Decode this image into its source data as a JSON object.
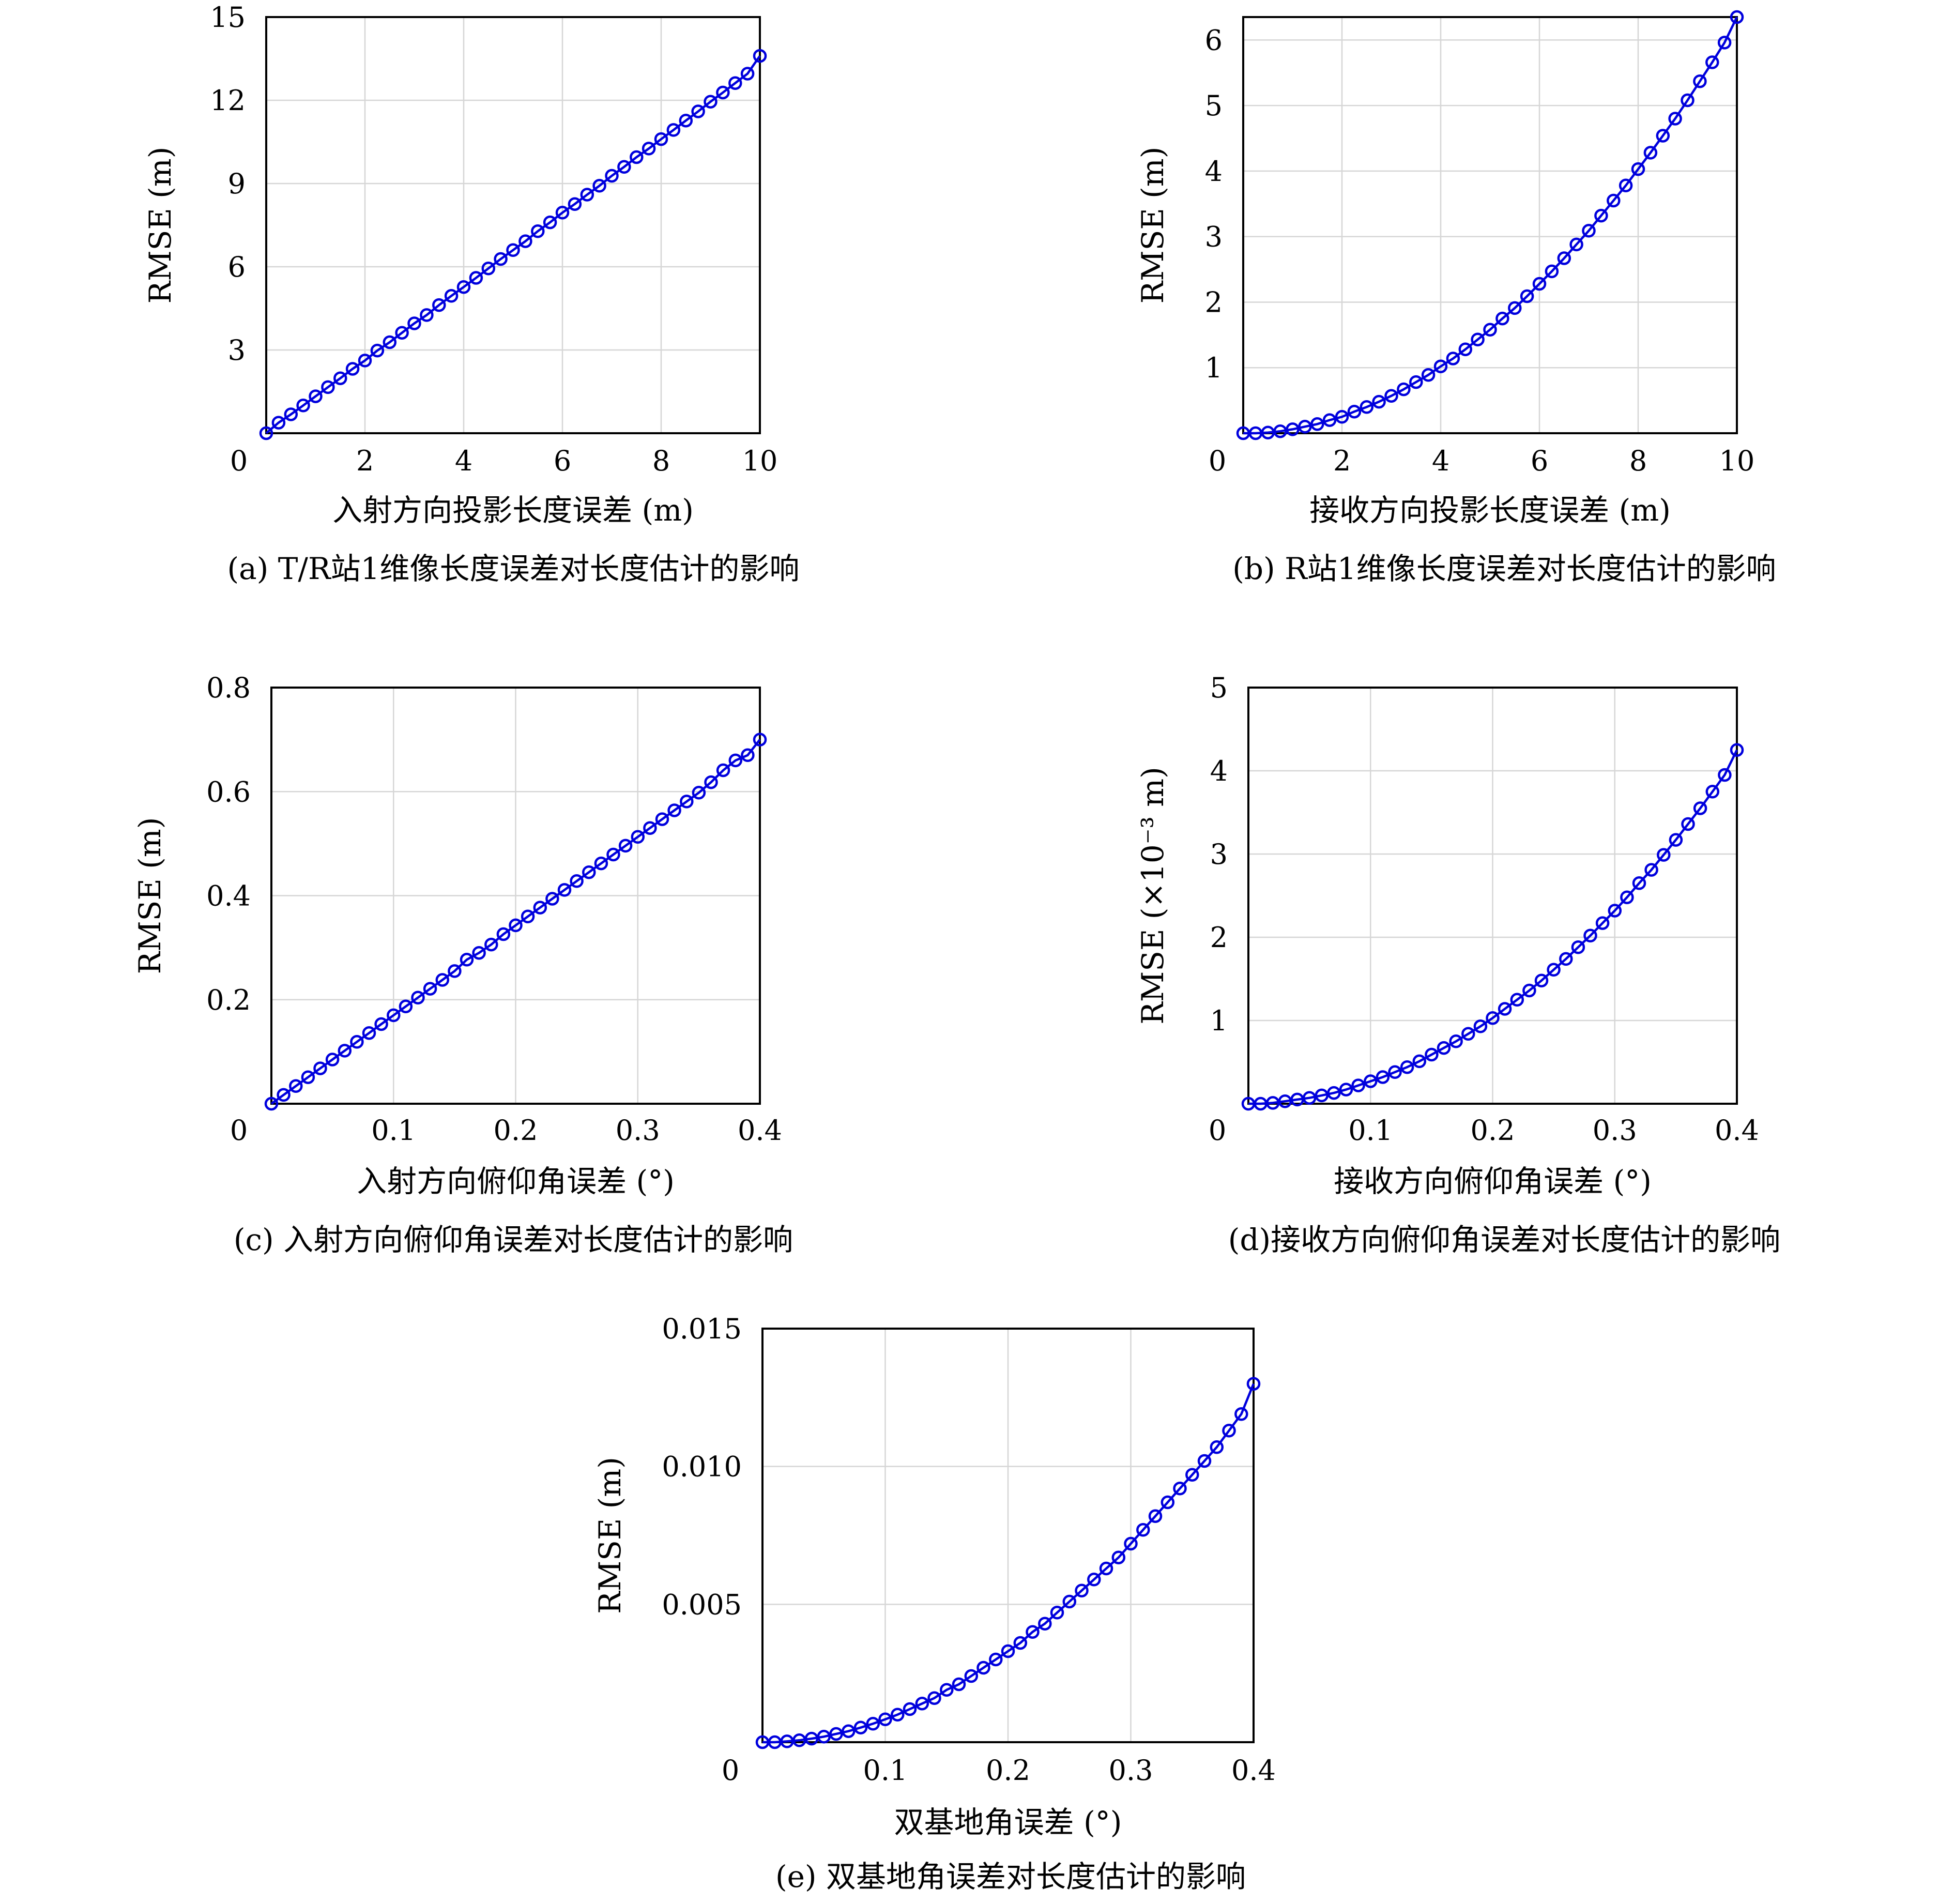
{
  "chart_data": [
    {
      "id": "a",
      "type": "line",
      "xlabel": "入射方向投影长度误差 (m)",
      "ylabel": "RMSE (m)",
      "caption": "(a) T/R站1维像长度误差对长度估计的影响",
      "xlim": [
        0,
        10
      ],
      "ylim": [
        0,
        15
      ],
      "xticks": [
        0,
        2,
        4,
        6,
        8,
        10
      ],
      "xtick_labels": [
        "0",
        "2",
        "4",
        "6",
        "8",
        "10"
      ],
      "yticks": [
        3,
        6,
        9,
        12,
        15
      ],
      "ytick_labels": [
        "3",
        "6",
        "9",
        "12",
        "15"
      ],
      "grid": true,
      "series": [
        {
          "color": "#0000dd",
          "marker": "circle",
          "x": [
            0.0,
            0.25,
            0.5,
            0.75,
            1.0,
            1.25,
            1.5,
            1.75,
            2.0,
            2.25,
            2.5,
            2.75,
            3.0,
            3.25,
            3.5,
            3.75,
            4.0,
            4.25,
            4.5,
            4.75,
            5.0,
            5.25,
            5.5,
            5.75,
            6.0,
            6.25,
            6.5,
            6.75,
            7.0,
            7.25,
            7.5,
            7.75,
            8.0,
            8.25,
            8.5,
            8.75,
            9.0,
            9.25,
            9.5,
            9.75,
            10.0
          ],
          "y": [
            0.0,
            0.38,
            0.68,
            1.0,
            1.33,
            1.66,
            1.98,
            2.32,
            2.62,
            2.98,
            3.28,
            3.62,
            3.96,
            4.26,
            4.62,
            4.95,
            5.27,
            5.6,
            5.94,
            6.28,
            6.6,
            6.92,
            7.28,
            7.6,
            7.95,
            8.26,
            8.6,
            8.92,
            9.28,
            9.6,
            9.95,
            10.26,
            10.6,
            10.93,
            11.27,
            11.6,
            11.95,
            12.28,
            12.62,
            12.96,
            13.6
          ]
        }
      ]
    },
    {
      "id": "b",
      "type": "line",
      "xlabel": "接收方向投影长度误差 (m)",
      "ylabel": "RMSE (m)",
      "caption": "(b) R站1维像长度误差对长度估计的影响",
      "xlim": [
        0,
        10
      ],
      "ylim": [
        0,
        6.35
      ],
      "xticks": [
        0,
        2,
        4,
        6,
        8,
        10
      ],
      "xtick_labels": [
        "0",
        "2",
        "4",
        "6",
        "8",
        "10"
      ],
      "yticks": [
        1,
        2,
        3,
        4,
        5,
        6
      ],
      "ytick_labels": [
        "1",
        "2",
        "3",
        "4",
        "5",
        "6"
      ],
      "grid": true,
      "series": [
        {
          "color": "#0000dd",
          "marker": "circle",
          "x": [
            0.0,
            0.25,
            0.5,
            0.75,
            1.0,
            1.25,
            1.5,
            1.75,
            2.0,
            2.25,
            2.5,
            2.75,
            3.0,
            3.25,
            3.5,
            3.75,
            4.0,
            4.25,
            4.5,
            4.75,
            5.0,
            5.25,
            5.5,
            5.75,
            6.0,
            6.25,
            6.5,
            6.75,
            7.0,
            7.25,
            7.5,
            7.75,
            8.0,
            8.25,
            8.5,
            8.75,
            9.0,
            9.25,
            9.5,
            9.75,
            10.0
          ],
          "y": [
            0.0,
            0.0,
            0.01,
            0.03,
            0.06,
            0.1,
            0.14,
            0.2,
            0.25,
            0.33,
            0.4,
            0.48,
            0.57,
            0.67,
            0.78,
            0.89,
            1.02,
            1.14,
            1.28,
            1.43,
            1.58,
            1.75,
            1.91,
            2.09,
            2.28,
            2.47,
            2.67,
            2.88,
            3.09,
            3.32,
            3.55,
            3.78,
            4.03,
            4.28,
            4.54,
            4.8,
            5.08,
            5.37,
            5.66,
            5.96,
            6.35
          ]
        }
      ]
    },
    {
      "id": "c",
      "type": "line",
      "xlabel": "入射方向俯仰角误差 (°)",
      "ylabel": "RMSE (m)",
      "caption": "(c) 入射方向俯仰角误差对长度估计的影响",
      "xlim": [
        0,
        0.4
      ],
      "ylim": [
        0,
        0.8
      ],
      "xticks": [
        0,
        0.1,
        0.2,
        0.3,
        0.4
      ],
      "xtick_labels": [
        "0",
        "0.1",
        "0.2",
        "0.3",
        "0.4"
      ],
      "yticks": [
        0.2,
        0.4,
        0.6,
        0.8
      ],
      "ytick_labels": [
        "0.2",
        "0.4",
        "0.6",
        "0.8"
      ],
      "grid": true,
      "series": [
        {
          "color": "#0000dd",
          "marker": "circle",
          "x": [
            0.0,
            0.01,
            0.02,
            0.03,
            0.04,
            0.05,
            0.06,
            0.07,
            0.08,
            0.09,
            0.1,
            0.11,
            0.12,
            0.13,
            0.14,
            0.15,
            0.16,
            0.17,
            0.18,
            0.19,
            0.2,
            0.21,
            0.22,
            0.23,
            0.24,
            0.25,
            0.26,
            0.27,
            0.28,
            0.29,
            0.3,
            0.31,
            0.32,
            0.33,
            0.34,
            0.35,
            0.36,
            0.37,
            0.38,
            0.39,
            0.4
          ],
          "y": [
            0.0,
            0.017,
            0.034,
            0.051,
            0.068,
            0.085,
            0.102,
            0.119,
            0.136,
            0.153,
            0.17,
            0.187,
            0.204,
            0.221,
            0.238,
            0.255,
            0.277,
            0.29,
            0.306,
            0.326,
            0.343,
            0.36,
            0.377,
            0.394,
            0.411,
            0.428,
            0.445,
            0.462,
            0.479,
            0.496,
            0.513,
            0.53,
            0.547,
            0.564,
            0.581,
            0.598,
            0.618,
            0.641,
            0.66,
            0.67,
            0.7
          ]
        }
      ]
    },
    {
      "id": "d",
      "type": "line",
      "xlabel": "接收方向俯仰角误差 (°)",
      "ylabel": "RMSE (×10⁻³ m)",
      "caption": "(d)接收方向俯仰角误差对长度估计的影响",
      "xlim": [
        0,
        0.4
      ],
      "ylim": [
        0,
        5
      ],
      "xticks": [
        0,
        0.1,
        0.2,
        0.3,
        0.4
      ],
      "xtick_labels": [
        "0",
        "0.1",
        "0.2",
        "0.3",
        "0.4"
      ],
      "yticks": [
        1,
        2,
        3,
        4,
        5
      ],
      "ytick_labels": [
        "1",
        "2",
        "3",
        "4",
        "5"
      ],
      "grid": true,
      "series": [
        {
          "color": "#0000dd",
          "marker": "circle",
          "x": [
            0.0,
            0.01,
            0.02,
            0.03,
            0.04,
            0.05,
            0.06,
            0.07,
            0.08,
            0.09,
            0.1,
            0.11,
            0.12,
            0.13,
            0.14,
            0.15,
            0.16,
            0.17,
            0.18,
            0.19,
            0.2,
            0.21,
            0.22,
            0.23,
            0.24,
            0.25,
            0.26,
            0.27,
            0.28,
            0.29,
            0.3,
            0.31,
            0.32,
            0.33,
            0.34,
            0.35,
            0.36,
            0.37,
            0.38,
            0.39,
            0.4
          ],
          "y": [
            0.0,
            0.0,
            0.01,
            0.03,
            0.05,
            0.07,
            0.1,
            0.13,
            0.17,
            0.22,
            0.27,
            0.32,
            0.38,
            0.44,
            0.51,
            0.59,
            0.67,
            0.75,
            0.84,
            0.93,
            1.03,
            1.14,
            1.25,
            1.36,
            1.48,
            1.61,
            1.74,
            1.88,
            2.02,
            2.17,
            2.32,
            2.48,
            2.65,
            2.81,
            2.99,
            3.17,
            3.36,
            3.55,
            3.75,
            3.95,
            4.25
          ]
        }
      ]
    },
    {
      "id": "e",
      "type": "line",
      "xlabel": "双基地角误差 (°)",
      "ylabel": "RMSE (m)",
      "caption": "(e) 双基地角误差对长度估计的影响",
      "xlim": [
        0,
        0.4
      ],
      "ylim": [
        0,
        0.015
      ],
      "xticks": [
        0,
        0.1,
        0.2,
        0.3,
        0.4
      ],
      "xtick_labels": [
        "0",
        "0.1",
        "0.2",
        "0.3",
        "0.4"
      ],
      "yticks": [
        0.005,
        0.01,
        0.015
      ],
      "ytick_labels": [
        "0.005",
        "0.010",
        "0.015"
      ],
      "grid": true,
      "series": [
        {
          "color": "#0000dd",
          "marker": "circle",
          "x": [
            0.0,
            0.01,
            0.02,
            0.03,
            0.04,
            0.05,
            0.06,
            0.07,
            0.08,
            0.09,
            0.1,
            0.11,
            0.12,
            0.13,
            0.14,
            0.15,
            0.16,
            0.17,
            0.18,
            0.19,
            0.2,
            0.21,
            0.22,
            0.23,
            0.24,
            0.25,
            0.26,
            0.27,
            0.28,
            0.29,
            0.3,
            0.31,
            0.32,
            0.33,
            0.34,
            0.35,
            0.36,
            0.37,
            0.38,
            0.39,
            0.4
          ],
          "y": [
            0.0,
            0.0,
            3e-05,
            7e-05,
            0.00013,
            0.0002,
            0.0003,
            0.0004,
            0.00053,
            0.00067,
            0.00083,
            0.001,
            0.0012,
            0.0014,
            0.0016,
            0.0019,
            0.0021,
            0.0024,
            0.0027,
            0.003,
            0.0033,
            0.0036,
            0.004,
            0.0043,
            0.0047,
            0.0051,
            0.0055,
            0.0059,
            0.0063,
            0.0067,
            0.0072,
            0.0077,
            0.0082,
            0.0087,
            0.0092,
            0.0097,
            0.0102,
            0.0107,
            0.0113,
            0.0119,
            0.013
          ]
        }
      ]
    }
  ]
}
